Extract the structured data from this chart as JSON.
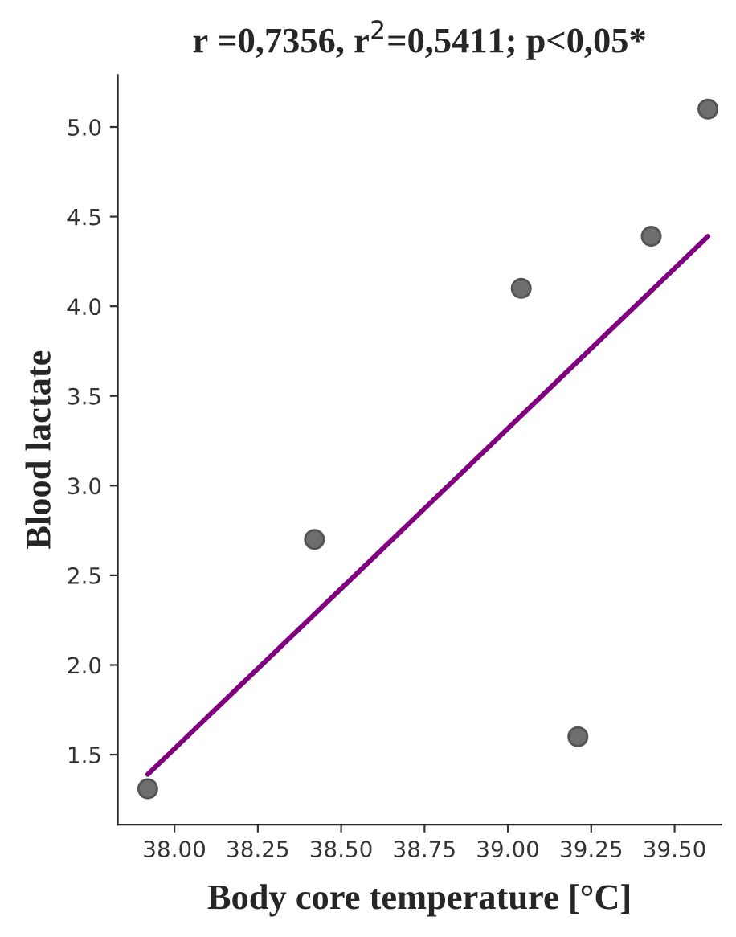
{
  "chart_data": {
    "type": "scatter",
    "title": "r =0,7356, r$^{2}$=0,5411; p<0,05*",
    "xlabel": "Body core temperature [°C]",
    "ylabel": "Blood lactate",
    "series": [
      {
        "marker": "circle",
        "color": "#6e6e6e",
        "x": [
          37.92,
          38.42,
          39.04,
          39.21,
          39.43,
          39.6
        ],
        "values": [
          1.31,
          2.7,
          4.1,
          1.6,
          4.39,
          5.1
        ]
      },
      {
        "type": "line",
        "color": "#800080",
        "x": [
          37.92,
          39.6
        ],
        "values": [
          1.39,
          4.39
        ]
      }
    ],
    "xlim": [
      37.83,
      39.64
    ],
    "ylim": [
      1.11,
      5.29
    ],
    "xticks": [
      {
        "value": 38.0,
        "label": "38.00"
      },
      {
        "value": 38.25,
        "label": "38.25"
      },
      {
        "value": 38.5,
        "label": "38.50"
      },
      {
        "value": 38.75,
        "label": "38.75"
      },
      {
        "value": 39.0,
        "label": "39.00"
      },
      {
        "value": 39.25,
        "label": "39.25"
      },
      {
        "value": 39.5,
        "label": "39.50"
      }
    ],
    "yticks": [
      {
        "value": 1.5,
        "label": "1.5"
      },
      {
        "value": 2.0,
        "label": "2.0"
      },
      {
        "value": 2.5,
        "label": "2.5"
      },
      {
        "value": 3.0,
        "label": "3.0"
      },
      {
        "value": 3.5,
        "label": "3.5"
      },
      {
        "value": 4.0,
        "label": "4.0"
      },
      {
        "value": 4.5,
        "label": "4.5"
      },
      {
        "value": 5.0,
        "label": "5.0"
      }
    ],
    "grid": false
  }
}
